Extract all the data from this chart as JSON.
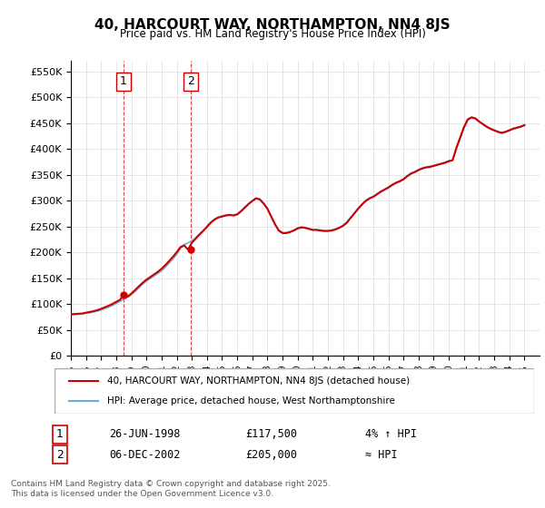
{
  "title": "40, HARCOURT WAY, NORTHAMPTON, NN4 8JS",
  "subtitle": "Price paid vs. HM Land Registry's House Price Index (HPI)",
  "ylabel_prefix": "£",
  "yticks": [
    0,
    50000,
    100000,
    150000,
    200000,
    250000,
    300000,
    350000,
    400000,
    450000,
    500000,
    550000
  ],
  "ytick_labels": [
    "£0",
    "£50K",
    "£100K",
    "£150K",
    "£200K",
    "£250K",
    "£300K",
    "£350K",
    "£400K",
    "£450K",
    "£500K",
    "£550K"
  ],
  "xlim_start": 1995,
  "xlim_end": 2026,
  "ylim_min": 0,
  "ylim_max": 570000,
  "hpi_color": "#6baed6",
  "price_color": "#cc0000",
  "background_color": "#ffffff",
  "grid_color": "#dddddd",
  "sale1_year": 1998.48,
  "sale1_price": 117500,
  "sale2_year": 2002.92,
  "sale2_price": 205000,
  "legend_label1": "40, HARCOURT WAY, NORTHAMPTON, NN4 8JS (detached house)",
  "legend_label2": "HPI: Average price, detached house, West Northamptonshire",
  "table_row1": [
    "1",
    "26-JUN-1998",
    "£117,500",
    "4% ↑ HPI"
  ],
  "table_row2": [
    "2",
    "06-DEC-2002",
    "£205,000",
    "≈ HPI"
  ],
  "footer": "Contains HM Land Registry data © Crown copyright and database right 2025.\nThis data is licensed under the Open Government Licence v3.0.",
  "hpi_data_x": [
    1995.0,
    1995.25,
    1995.5,
    1995.75,
    1996.0,
    1996.25,
    1996.5,
    1996.75,
    1997.0,
    1997.25,
    1997.5,
    1997.75,
    1998.0,
    1998.25,
    1998.5,
    1998.75,
    1999.0,
    1999.25,
    1999.5,
    1999.75,
    2000.0,
    2000.25,
    2000.5,
    2000.75,
    2001.0,
    2001.25,
    2001.5,
    2001.75,
    2002.0,
    2002.25,
    2002.5,
    2002.75,
    2003.0,
    2003.25,
    2003.5,
    2003.75,
    2004.0,
    2004.25,
    2004.5,
    2004.75,
    2005.0,
    2005.25,
    2005.5,
    2005.75,
    2006.0,
    2006.25,
    2006.5,
    2006.75,
    2007.0,
    2007.25,
    2007.5,
    2007.75,
    2008.0,
    2008.25,
    2008.5,
    2008.75,
    2009.0,
    2009.25,
    2009.5,
    2009.75,
    2010.0,
    2010.25,
    2010.5,
    2010.75,
    2011.0,
    2011.25,
    2011.5,
    2011.75,
    2012.0,
    2012.25,
    2012.5,
    2012.75,
    2013.0,
    2013.25,
    2013.5,
    2013.75,
    2014.0,
    2014.25,
    2014.5,
    2014.75,
    2015.0,
    2015.25,
    2015.5,
    2015.75,
    2016.0,
    2016.25,
    2016.5,
    2016.75,
    2017.0,
    2017.25,
    2017.5,
    2017.75,
    2018.0,
    2018.25,
    2018.5,
    2018.75,
    2019.0,
    2019.25,
    2019.5,
    2019.75,
    2020.0,
    2020.25,
    2020.5,
    2020.75,
    2021.0,
    2021.25,
    2021.5,
    2021.75,
    2022.0,
    2022.25,
    2022.5,
    2022.75,
    2023.0,
    2023.25,
    2023.5,
    2023.75,
    2024.0,
    2024.25,
    2024.5,
    2024.75,
    2025.0
  ],
  "hpi_data_y": [
    79000,
    79500,
    80000,
    80500,
    82000,
    83000,
    84500,
    86000,
    88000,
    91000,
    94000,
    97000,
    101000,
    105000,
    109000,
    113000,
    118000,
    124000,
    131000,
    138000,
    144000,
    149000,
    154000,
    159000,
    164000,
    171000,
    179000,
    187000,
    196000,
    207000,
    215000,
    218000,
    222000,
    228000,
    235000,
    242000,
    250000,
    258000,
    264000,
    268000,
    270000,
    272000,
    273000,
    272000,
    274000,
    280000,
    287000,
    294000,
    300000,
    305000,
    303000,
    295000,
    285000,
    270000,
    255000,
    243000,
    238000,
    238000,
    240000,
    243000,
    247000,
    249000,
    248000,
    246000,
    244000,
    244000,
    243000,
    242000,
    242000,
    243000,
    245000,
    248000,
    252000,
    258000,
    267000,
    276000,
    285000,
    293000,
    300000,
    305000,
    308000,
    313000,
    318000,
    322000,
    326000,
    331000,
    335000,
    338000,
    342000,
    348000,
    353000,
    356000,
    360000,
    363000,
    365000,
    366000,
    368000,
    370000,
    372000,
    374000,
    377000,
    378000,
    400000,
    420000,
    440000,
    455000,
    460000,
    458000,
    452000,
    447000,
    442000,
    438000,
    435000,
    432000,
    430000,
    432000,
    435000,
    438000,
    440000,
    442000,
    445000
  ],
  "price_data_x": [
    1995.0,
    1995.25,
    1995.5,
    1995.75,
    1996.0,
    1996.25,
    1996.5,
    1996.75,
    1997.0,
    1997.25,
    1997.5,
    1997.75,
    1998.0,
    1998.25,
    1998.5,
    1998.75,
    1999.0,
    1999.25,
    1999.5,
    1999.75,
    2000.0,
    2000.25,
    2000.5,
    2000.75,
    2001.0,
    2001.25,
    2001.5,
    2001.75,
    2002.0,
    2002.25,
    2002.5,
    2002.75,
    2003.0,
    2003.25,
    2003.5,
    2003.75,
    2004.0,
    2004.25,
    2004.5,
    2004.75,
    2005.0,
    2005.25,
    2005.5,
    2005.75,
    2006.0,
    2006.25,
    2006.5,
    2006.75,
    2007.0,
    2007.25,
    2007.5,
    2007.75,
    2008.0,
    2008.25,
    2008.5,
    2008.75,
    2009.0,
    2009.25,
    2009.5,
    2009.75,
    2010.0,
    2010.25,
    2010.5,
    2010.75,
    2011.0,
    2011.25,
    2011.5,
    2011.75,
    2012.0,
    2012.25,
    2012.5,
    2012.75,
    2013.0,
    2013.25,
    2013.5,
    2013.75,
    2014.0,
    2014.25,
    2014.5,
    2014.75,
    2015.0,
    2015.25,
    2015.5,
    2015.75,
    2016.0,
    2016.25,
    2016.5,
    2016.75,
    2017.0,
    2017.25,
    2017.5,
    2017.75,
    2018.0,
    2018.25,
    2018.5,
    2018.75,
    2019.0,
    2019.25,
    2019.5,
    2019.75,
    2020.0,
    2020.25,
    2020.5,
    2020.75,
    2021.0,
    2021.25,
    2021.5,
    2021.75,
    2022.0,
    2022.25,
    2022.5,
    2022.75,
    2023.0,
    2023.25,
    2023.5,
    2023.75,
    2024.0,
    2024.25,
    2024.5,
    2024.75,
    2025.0
  ],
  "price_data_y": [
    80000,
    80500,
    81000,
    81500,
    83000,
    84500,
    86000,
    88000,
    90500,
    93500,
    96500,
    100000,
    104000,
    108000,
    117500,
    114000,
    120000,
    127000,
    134000,
    141000,
    147000,
    152000,
    157000,
    162000,
    168000,
    175000,
    183000,
    191000,
    200000,
    210000,
    213000,
    205000,
    218000,
    226000,
    234000,
    241000,
    249000,
    257000,
    263000,
    267000,
    269000,
    271000,
    272000,
    271000,
    273000,
    279000,
    286000,
    293000,
    299000,
    304000,
    302000,
    294000,
    284000,
    269000,
    254000,
    242000,
    237000,
    237000,
    239000,
    242000,
    246000,
    248000,
    247000,
    245000,
    243000,
    243000,
    242000,
    241000,
    241000,
    242000,
    244000,
    247000,
    251000,
    257000,
    266000,
    275000,
    284000,
    292000,
    299000,
    304000,
    307000,
    312000,
    317000,
    321000,
    325000,
    330000,
    334000,
    337000,
    341000,
    347000,
    352000,
    355000,
    359000,
    362000,
    364000,
    365000,
    367000,
    369000,
    371000,
    373000,
    376000,
    378000,
    402000,
    422000,
    442000,
    457000,
    461000,
    459000,
    453000,
    448000,
    443000,
    439000,
    436000,
    433000,
    431000,
    433000,
    436000,
    439000,
    441000,
    443000,
    446000
  ]
}
